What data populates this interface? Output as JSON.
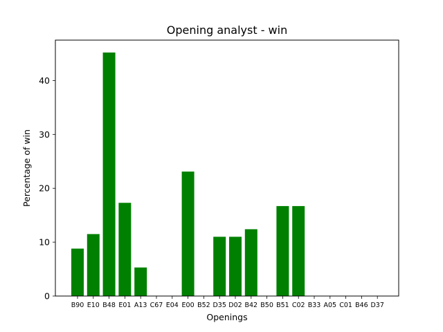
{
  "chart_data": {
    "type": "bar",
    "title": "Opening analyst - win",
    "xlabel": "Openings",
    "ylabel": "Percentage of win",
    "categories": [
      "B90",
      "E10",
      "B48",
      "E01",
      "A13",
      "C67",
      "E04",
      "E00",
      "B52",
      "D35",
      "D02",
      "B42",
      "B50",
      "B51",
      "C02",
      "B33",
      "A05",
      "C01",
      "B46",
      "D37"
    ],
    "values": [
      8.8,
      11.5,
      45.2,
      17.3,
      5.3,
      0,
      0,
      23.1,
      0,
      11.0,
      11.0,
      12.4,
      0,
      16.7,
      16.7,
      0,
      0,
      0,
      0,
      0
    ],
    "ylim": [
      0,
      47.5
    ],
    "yticks": [
      0,
      10,
      20,
      30,
      40
    ],
    "bar_color": "#008000",
    "grid": false
  }
}
